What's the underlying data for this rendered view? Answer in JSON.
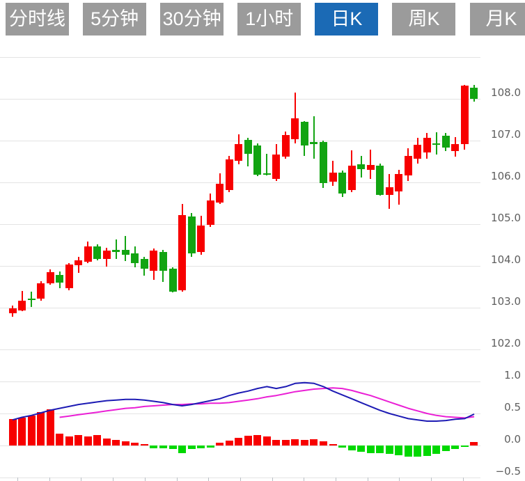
{
  "tabs": [
    {
      "label": "分时线",
      "active": false
    },
    {
      "label": "5分钟",
      "active": false
    },
    {
      "label": "30分钟",
      "active": false
    },
    {
      "label": "1小时",
      "active": false
    },
    {
      "label": "日K",
      "active": true
    },
    {
      "label": "周K",
      "active": false
    },
    {
      "label": "月K",
      "active": false
    }
  ],
  "colors": {
    "tab_inactive": "#9b9b9b",
    "tab_active": "#1b6ab5",
    "up": "#f70000",
    "down": "#12a412",
    "hist_up": "#f70000",
    "hist_down": "#00d800",
    "dif_line": "#1d1bb4",
    "dea_line": "#ea1fd5",
    "gridline": "#e3e3e3",
    "axis_text": "#5e5e5e"
  },
  "chart_data": {
    "type": "candlestick",
    "legend": "none",
    "grid": true,
    "panes": {
      "price": {
        "ylim": [
          102.0,
          109.0
        ],
        "gridline_values": [
          109,
          108,
          107,
          106,
          105,
          104,
          103,
          102
        ],
        "tick_labels": [
          "108.0",
          "107.0",
          "106.0",
          "105.0",
          "104.0",
          "103.0",
          "102.0"
        ],
        "candles": [
          {
            "o": 102.86,
            "h": 103.05,
            "l": 102.78,
            "c": 102.98
          },
          {
            "o": 102.93,
            "h": 103.4,
            "l": 102.91,
            "c": 103.17
          },
          {
            "o": 103.22,
            "h": 103.38,
            "l": 103.02,
            "c": 103.18
          },
          {
            "o": 103.21,
            "h": 103.64,
            "l": 103.17,
            "c": 103.59
          },
          {
            "o": 103.59,
            "h": 103.92,
            "l": 103.55,
            "c": 103.85
          },
          {
            "o": 103.79,
            "h": 103.86,
            "l": 103.47,
            "c": 103.6
          },
          {
            "o": 103.46,
            "h": 104.07,
            "l": 103.41,
            "c": 104.03
          },
          {
            "o": 104.02,
            "h": 104.21,
            "l": 103.84,
            "c": 104.13
          },
          {
            "o": 104.1,
            "h": 104.58,
            "l": 104.07,
            "c": 104.47
          },
          {
            "o": 104.47,
            "h": 104.52,
            "l": 104.14,
            "c": 104.17
          },
          {
            "o": 104.17,
            "h": 104.43,
            "l": 103.99,
            "c": 104.37
          },
          {
            "o": 104.39,
            "h": 104.63,
            "l": 104.16,
            "c": 104.33
          },
          {
            "o": 104.38,
            "h": 104.71,
            "l": 104.11,
            "c": 104.27
          },
          {
            "o": 104.3,
            "h": 104.46,
            "l": 103.96,
            "c": 104.06
          },
          {
            "o": 104.16,
            "h": 104.21,
            "l": 103.76,
            "c": 103.93
          },
          {
            "o": 103.88,
            "h": 104.41,
            "l": 103.66,
            "c": 104.36
          },
          {
            "o": 104.34,
            "h": 104.38,
            "l": 103.61,
            "c": 103.88
          },
          {
            "o": 103.93,
            "h": 103.97,
            "l": 103.37,
            "c": 103.39
          },
          {
            "o": 103.41,
            "h": 105.49,
            "l": 103.38,
            "c": 105.21
          },
          {
            "o": 105.18,
            "h": 105.27,
            "l": 104.21,
            "c": 104.3
          },
          {
            "o": 104.33,
            "h": 105.2,
            "l": 104.27,
            "c": 104.97
          },
          {
            "o": 104.98,
            "h": 105.74,
            "l": 104.94,
            "c": 105.56
          },
          {
            "o": 105.52,
            "h": 106.21,
            "l": 105.48,
            "c": 105.96
          },
          {
            "o": 105.82,
            "h": 106.63,
            "l": 105.77,
            "c": 106.55
          },
          {
            "o": 106.52,
            "h": 107.15,
            "l": 106.43,
            "c": 106.91
          },
          {
            "o": 107.02,
            "h": 107.06,
            "l": 106.38,
            "c": 106.68
          },
          {
            "o": 106.89,
            "h": 106.93,
            "l": 106.15,
            "c": 106.19
          },
          {
            "o": 106.22,
            "h": 106.69,
            "l": 106.17,
            "c": 106.2
          },
          {
            "o": 106.08,
            "h": 106.92,
            "l": 106.03,
            "c": 106.67
          },
          {
            "o": 106.61,
            "h": 107.22,
            "l": 106.56,
            "c": 107.14
          },
          {
            "o": 107.03,
            "h": 108.15,
            "l": 106.94,
            "c": 107.53
          },
          {
            "o": 107.45,
            "h": 107.47,
            "l": 106.64,
            "c": 106.89
          },
          {
            "o": 106.96,
            "h": 107.58,
            "l": 106.56,
            "c": 106.91
          },
          {
            "o": 106.97,
            "h": 107.0,
            "l": 105.86,
            "c": 105.98
          },
          {
            "o": 106.01,
            "h": 106.51,
            "l": 105.92,
            "c": 106.23
          },
          {
            "o": 106.23,
            "h": 106.29,
            "l": 105.65,
            "c": 105.73
          },
          {
            "o": 105.81,
            "h": 106.76,
            "l": 105.76,
            "c": 106.4
          },
          {
            "o": 106.43,
            "h": 106.64,
            "l": 106.12,
            "c": 106.31
          },
          {
            "o": 106.3,
            "h": 106.79,
            "l": 106.09,
            "c": 106.41
          },
          {
            "o": 106.4,
            "h": 106.45,
            "l": 105.68,
            "c": 105.7
          },
          {
            "o": 105.7,
            "h": 106.2,
            "l": 105.37,
            "c": 105.89
          },
          {
            "o": 105.78,
            "h": 106.3,
            "l": 105.47,
            "c": 106.2
          },
          {
            "o": 106.17,
            "h": 106.81,
            "l": 106.03,
            "c": 106.64
          },
          {
            "o": 106.57,
            "h": 107.06,
            "l": 106.45,
            "c": 106.9
          },
          {
            "o": 106.71,
            "h": 107.18,
            "l": 106.57,
            "c": 107.06
          },
          {
            "o": 106.94,
            "h": 107.2,
            "l": 106.66,
            "c": 106.9
          },
          {
            "o": 107.11,
            "h": 107.18,
            "l": 106.75,
            "c": 106.84
          },
          {
            "o": 106.75,
            "h": 107.09,
            "l": 106.61,
            "c": 106.92
          },
          {
            "o": 106.92,
            "h": 108.33,
            "l": 106.78,
            "c": 108.31
          },
          {
            "o": 108.27,
            "h": 108.33,
            "l": 107.94,
            "c": 108.0
          }
        ]
      },
      "macd": {
        "ylim": [
          -0.55,
          1.05
        ],
        "gridline_values": [
          1.0,
          0.5,
          0.0,
          -0.5
        ],
        "tick_labels": [
          "1.0",
          "0.5",
          "0.0",
          "−0.5"
        ],
        "histogram": [
          0.41,
          0.44,
          0.47,
          0.52,
          0.56,
          0.19,
          0.14,
          0.16,
          0.14,
          0.16,
          0.11,
          0.09,
          0.06,
          0.04,
          0.02,
          -0.04,
          -0.04,
          -0.05,
          -0.12,
          -0.05,
          -0.04,
          -0.03,
          0.04,
          0.08,
          0.12,
          0.15,
          0.16,
          0.14,
          0.09,
          0.09,
          0.1,
          0.09,
          0.1,
          0.06,
          0.02,
          -0.03,
          -0.08,
          -0.1,
          -0.12,
          -0.12,
          -0.13,
          -0.15,
          -0.17,
          -0.17,
          -0.16,
          -0.13,
          -0.09,
          -0.05,
          -0.02,
          0.05
        ],
        "dif": [
          0.4,
          0.44,
          0.47,
          0.51,
          0.55,
          0.58,
          0.61,
          0.64,
          0.66,
          0.68,
          0.7,
          0.71,
          0.72,
          0.72,
          0.71,
          0.69,
          0.67,
          0.64,
          0.62,
          0.64,
          0.67,
          0.7,
          0.73,
          0.78,
          0.82,
          0.85,
          0.89,
          0.92,
          0.89,
          0.92,
          0.97,
          0.98,
          0.97,
          0.92,
          0.85,
          0.79,
          0.73,
          0.67,
          0.61,
          0.55,
          0.5,
          0.46,
          0.42,
          0.4,
          0.38,
          0.38,
          0.39,
          0.41,
          0.42,
          0.49
        ],
        "dea": [
          null,
          null,
          null,
          null,
          null,
          0.44,
          0.46,
          0.48,
          0.5,
          0.52,
          0.54,
          0.56,
          0.58,
          0.59,
          0.61,
          0.62,
          0.63,
          0.64,
          0.64,
          0.65,
          0.65,
          0.66,
          0.66,
          0.67,
          0.69,
          0.71,
          0.73,
          0.76,
          0.78,
          0.81,
          0.84,
          0.86,
          0.88,
          0.89,
          0.9,
          0.89,
          0.86,
          0.82,
          0.78,
          0.73,
          0.68,
          0.63,
          0.58,
          0.54,
          0.5,
          0.47,
          0.45,
          0.44,
          0.43,
          0.45
        ]
      },
      "x_axis": {
        "tick_count": 15,
        "tick_labels": []
      }
    }
  }
}
